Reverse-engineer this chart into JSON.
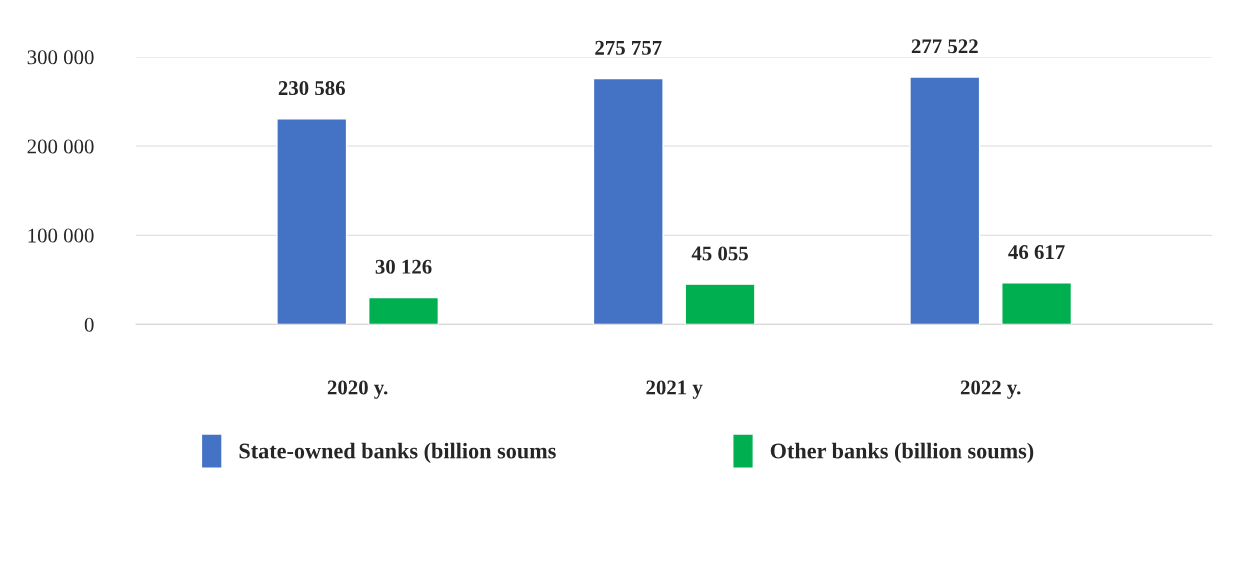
{
  "chart_data": {
    "type": "bar",
    "categories": [
      "2020 y.",
      "2021 y",
      "2022 y."
    ],
    "series": [
      {
        "name": "State-owned banks (billion soums",
        "color": "#4472c4",
        "values": [
          230586,
          275757,
          277522
        ],
        "value_labels": [
          "230 586",
          "275 757",
          "277 522"
        ]
      },
      {
        "name": "Other banks (billion soums)",
        "color": "#00b050",
        "values": [
          30126,
          45055,
          46617
        ],
        "value_labels": [
          "30 126",
          "45 055",
          "46 617"
        ]
      }
    ],
    "ylim": [
      0,
      300000
    ],
    "yticks": [
      {
        "value": 0,
        "label": "0"
      },
      {
        "value": 100000,
        "label": "100 000"
      },
      {
        "value": 200000,
        "label": "200 000"
      },
      {
        "value": 300000,
        "label": "300 000"
      }
    ],
    "grid": "y",
    "legend": "bottom"
  }
}
